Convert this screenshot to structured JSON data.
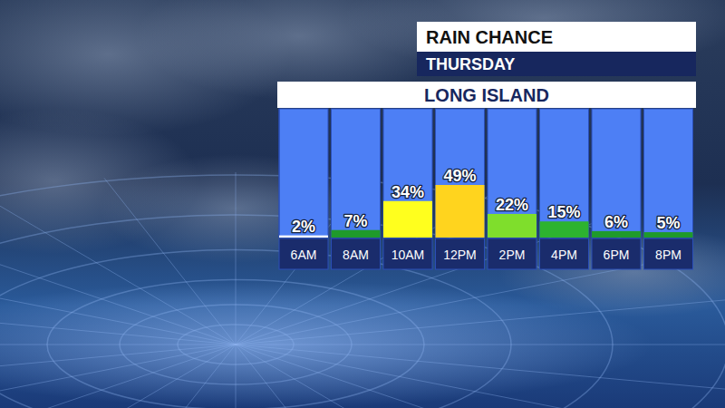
{
  "chart_data": {
    "type": "bar",
    "title": "RAIN CHANCE",
    "subtitle": "THURSDAY",
    "annotations": [
      "LONG ISLAND"
    ],
    "categories": [
      "6AM",
      "8AM",
      "10AM",
      "12PM",
      "2PM",
      "4PM",
      "6PM",
      "8PM"
    ],
    "values": [
      2,
      7,
      34,
      49,
      22,
      15,
      6,
      5
    ],
    "value_labels": [
      "2%",
      "7%",
      "34%",
      "49%",
      "22%",
      "15%",
      "6%",
      "5%"
    ],
    "colors": [
      "#ffffff",
      "#1f9a2b",
      "#ffff1e",
      "#ffd41e",
      "#7fde2c",
      "#2db32f",
      "#1f9a2b",
      "#1f9a2b"
    ],
    "ylim": [
      0,
      120
    ],
    "grid": false,
    "data_labels": true,
    "tick_labels": "x"
  }
}
